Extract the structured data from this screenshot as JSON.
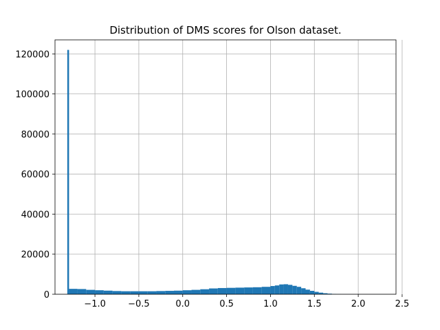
{
  "chart_data": {
    "type": "bar",
    "title": "Distribution of DMS scores for Olson dataset.",
    "xlabel": "",
    "ylabel": "",
    "xlim": [
      -1.455,
      2.43
    ],
    "ylim": [
      0,
      127000
    ],
    "x_ticks": [
      {
        "value": -1.0,
        "label": "−1.0"
      },
      {
        "value": -0.5,
        "label": "−0.5"
      },
      {
        "value": 0.0,
        "label": "0.0"
      },
      {
        "value": 0.5,
        "label": "0.5"
      },
      {
        "value": 1.0,
        "label": "1.0"
      },
      {
        "value": 1.5,
        "label": "1.5"
      },
      {
        "value": 2.0,
        "label": "2.0"
      },
      {
        "value": 2.5,
        "label": "2.5"
      }
    ],
    "y_ticks": [
      {
        "value": 0,
        "label": "0"
      },
      {
        "value": 20000,
        "label": "20000"
      },
      {
        "value": 40000,
        "label": "40000"
      },
      {
        "value": 60000,
        "label": "60000"
      },
      {
        "value": 80000,
        "label": "80000"
      },
      {
        "value": 100000,
        "label": "100000"
      },
      {
        "value": 120000,
        "label": "120000"
      }
    ],
    "grid": true,
    "color": "#1f77b4",
    "bin_edges": [
      -1.315,
      -1.295,
      -1.2,
      -1.1,
      -1.0,
      -0.9,
      -0.8,
      -0.7,
      -0.6,
      -0.5,
      -0.4,
      -0.3,
      -0.2,
      -0.1,
      0.0,
      0.1,
      0.2,
      0.3,
      0.4,
      0.5,
      0.6,
      0.7,
      0.8,
      0.9,
      1.0,
      1.05,
      1.1,
      1.15,
      1.2,
      1.25,
      1.3,
      1.35,
      1.4,
      1.45,
      1.5,
      1.55,
      1.6,
      1.65,
      1.7,
      1.75,
      1.8,
      1.9,
      2.0,
      2.2,
      2.33
    ],
    "values": [
      122000,
      2700,
      2600,
      2200,
      2000,
      1800,
      1600,
      1500,
      1500,
      1500,
      1500,
      1600,
      1700,
      1800,
      2000,
      2200,
      2500,
      2900,
      3100,
      3200,
      3300,
      3400,
      3500,
      3700,
      4100,
      4400,
      4900,
      5000,
      4700,
      4200,
      3700,
      3000,
      2300,
      1700,
      1200,
      800,
      500,
      300,
      150,
      80,
      40,
      20,
      10,
      5
    ]
  }
}
